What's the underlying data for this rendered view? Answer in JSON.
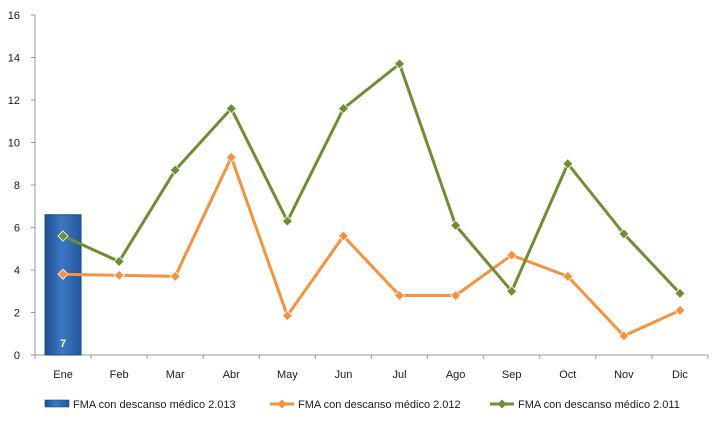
{
  "chart_data": {
    "type": "bar+line",
    "title": "",
    "xlabel": "",
    "ylabel": "",
    "categories": [
      "Ene",
      "Feb",
      "Mar",
      "Abr",
      "May",
      "Jun",
      "Jul",
      "Ago",
      "Sep",
      "Oct",
      "Nov",
      "Dic"
    ],
    "ylim": [
      0,
      16
    ],
    "yticks": [
      0,
      2,
      4,
      6,
      8,
      10,
      12,
      14,
      16
    ],
    "grid": false,
    "legend_position": "bottom",
    "series": [
      {
        "name": "FMA con descanso médico 2.013",
        "kind": "bar",
        "color": "#2e63a8",
        "values": [
          6.6,
          null,
          null,
          null,
          null,
          null,
          null,
          null,
          null,
          null,
          null,
          null
        ],
        "data_labels": [
          "7",
          null,
          null,
          null,
          null,
          null,
          null,
          null,
          null,
          null,
          null,
          null
        ]
      },
      {
        "name": "FMA con descanso médico 2.012",
        "kind": "line",
        "color": "#f7923a",
        "marker": "diamond",
        "values": [
          3.8,
          3.75,
          3.7,
          9.3,
          1.85,
          5.6,
          2.8,
          2.8,
          4.7,
          3.7,
          0.9,
          2.1
        ]
      },
      {
        "name": "FMA con descanso médico 2.011",
        "kind": "line",
        "color": "#6d8f32",
        "marker": "diamond",
        "values": [
          5.6,
          4.4,
          8.7,
          11.6,
          6.3,
          11.6,
          13.7,
          6.1,
          3.0,
          9.0,
          5.7,
          2.9
        ]
      }
    ]
  }
}
